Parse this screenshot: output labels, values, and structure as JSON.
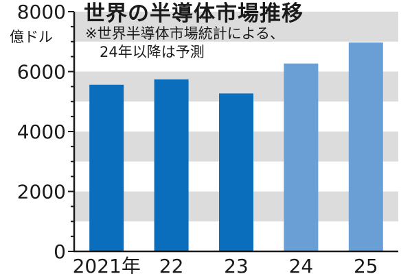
{
  "chart_data": {
    "type": "bar",
    "title": "世界の半導体市場推移",
    "note_lines": [
      "※世界半導体市場統計による、",
      "　24年以降は予測"
    ],
    "ylabel": "億ドル",
    "xlabel": "",
    "categories": [
      "2021年",
      "22",
      "23",
      "24",
      "25"
    ],
    "values": [
      5560,
      5740,
      5270,
      6270,
      6970
    ],
    "forecast": [
      false,
      false,
      false,
      true,
      true
    ],
    "ylim": [
      0,
      8000
    ],
    "yticks": [
      "0",
      "2000",
      "4000",
      "6000",
      "8000"
    ],
    "grid": "alternating-bands",
    "colors": {
      "actual": "#0a6ebd",
      "forecast": "#6a9fd6",
      "band": "#dcdcdc",
      "axis": "#1a1a1a"
    }
  }
}
